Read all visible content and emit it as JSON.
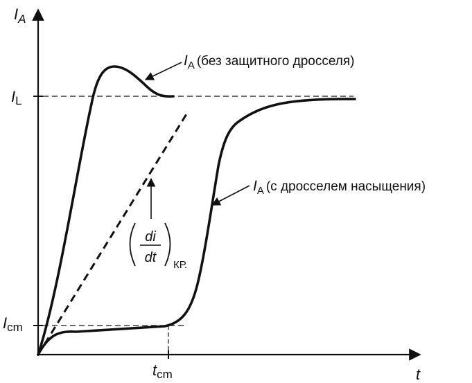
{
  "axes": {
    "y_symbol": "I",
    "y_subscript": "A",
    "x_symbol": "t"
  },
  "levels": {
    "il_symbol": "I",
    "il_subscript": "L",
    "icm_symbol": "I",
    "icm_subscript": "cm",
    "tcm_symbol": "t",
    "tcm_subscript": "cm"
  },
  "annotations": {
    "curve_no_choke": {
      "symbol": "I",
      "subscript": "A",
      "text": "(без защитного дросселя)"
    },
    "curve_with_choke": {
      "symbol": "I",
      "subscript": "A",
      "text": "(с  дросселем насыщения)"
    },
    "critical_slope": {
      "numerator": "di",
      "denominator": "dt",
      "subscript": "КР."
    }
  }
}
